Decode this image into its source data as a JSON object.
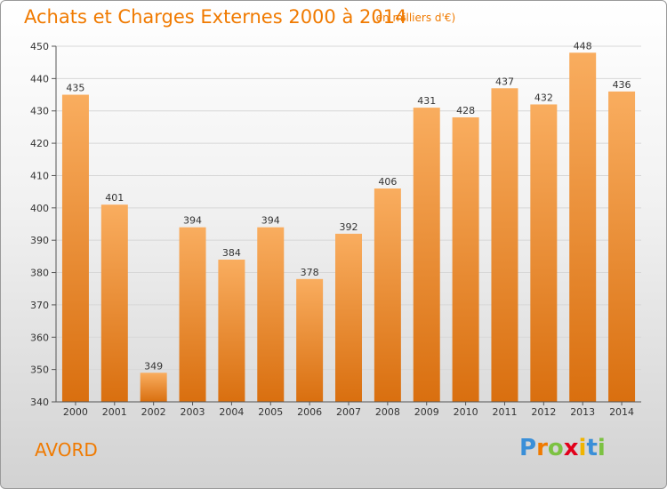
{
  "title": "Achats et Charges Externes 2000 à 2014",
  "subtitle": "(en milliers d'€)",
  "place": "AVORD",
  "logo": {
    "text": "Proxiti",
    "letter_colors": [
      "#3a8fd8",
      "#f07a00",
      "#7cc242",
      "#e2001a",
      "#f0b400",
      "#3a8fd8",
      "#7cc242"
    ]
  },
  "colors": {
    "bar_top": "#f9ad5f",
    "bar_bottom": "#d96f0f",
    "accent": "#f07a00"
  },
  "chart_data": {
    "type": "bar",
    "title": "Achats et Charges Externes 2000 à 2014",
    "subtitle": "(en milliers d'€)",
    "categories": [
      "2000",
      "2001",
      "2002",
      "2003",
      "2004",
      "2005",
      "2006",
      "2007",
      "2008",
      "2009",
      "2010",
      "2011",
      "2012",
      "2013",
      "2014"
    ],
    "values": [
      435,
      401,
      349,
      394,
      384,
      394,
      378,
      392,
      406,
      431,
      428,
      437,
      432,
      448,
      436
    ],
    "ylim": [
      340,
      450
    ],
    "yticks": [
      340,
      350,
      360,
      370,
      380,
      390,
      400,
      410,
      420,
      430,
      440,
      450
    ],
    "grid": true,
    "legend": "none"
  }
}
